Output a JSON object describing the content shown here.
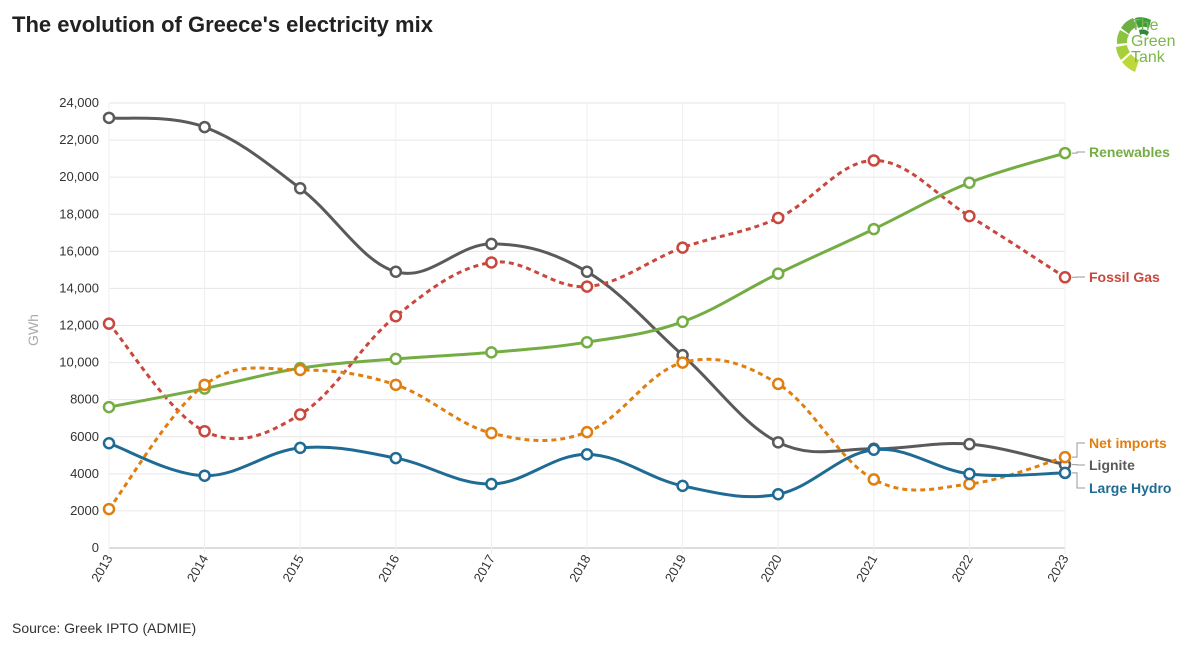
{
  "title": "The evolution of Greece's electricity mix",
  "source": "Source: Greek IPTO (ADMIE)",
  "logo": {
    "line1": "The",
    "line2": "Green",
    "line3": "Tank"
  },
  "chart_data": {
    "type": "line",
    "title": "The evolution of Greece's electricity mix",
    "ylabel": "GWh",
    "xlabel": "",
    "ylim": [
      0,
      24000
    ],
    "yticks": [
      0,
      2000,
      4000,
      6000,
      8000,
      10000,
      12000,
      14000,
      16000,
      18000,
      20000,
      22000,
      24000
    ],
    "ytick_labels": [
      "0",
      "2000",
      "4000",
      "6000",
      "8000",
      "10,000",
      "12,000",
      "14,000",
      "16,000",
      "18,000",
      "20,000",
      "22,000",
      "24,000"
    ],
    "categories": [
      "2013",
      "2014",
      "2015",
      "2016",
      "2017",
      "2018",
      "2019",
      "2020",
      "2021",
      "2022",
      "2023"
    ],
    "grid": true,
    "legend": "direct labels at right end of lines",
    "series": [
      {
        "name": "Lignite",
        "color": "#5a5a5a",
        "dashed": false,
        "values": [
          23200,
          22700,
          19400,
          14900,
          16400,
          14900,
          10400,
          5700,
          5350,
          5600,
          4500
        ]
      },
      {
        "name": "Fossil Gas",
        "color": "#c9473d",
        "dashed": true,
        "values": [
          12100,
          6300,
          7200,
          12500,
          15400,
          14100,
          16200,
          17800,
          20900,
          17900,
          14600
        ]
      },
      {
        "name": "Renewables",
        "color": "#74ad44",
        "dashed": false,
        "values": [
          7600,
          8600,
          9700,
          10200,
          10550,
          11100,
          12200,
          14800,
          17200,
          19700,
          21300
        ]
      },
      {
        "name": "Net imports",
        "color": "#e07f10",
        "dashed": true,
        "values": [
          2100,
          8800,
          9600,
          8800,
          6200,
          6250,
          10000,
          8850,
          3700,
          3450,
          4900
        ]
      },
      {
        "name": "Large Hydro",
        "color": "#1f6b94",
        "dashed": false,
        "values": [
          5650,
          3900,
          5400,
          4850,
          3450,
          5050,
          3350,
          2900,
          5300,
          4000,
          4050
        ]
      }
    ]
  }
}
